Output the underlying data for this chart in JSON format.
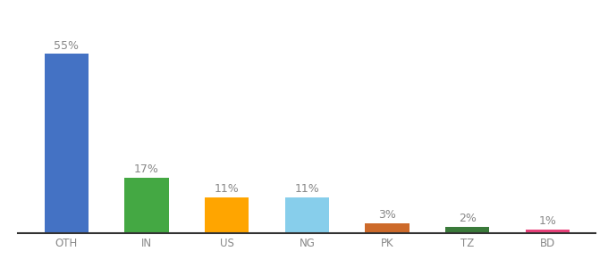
{
  "categories": [
    "OTH",
    "IN",
    "US",
    "NG",
    "PK",
    "TZ",
    "BD"
  ],
  "values": [
    55,
    17,
    11,
    11,
    3,
    2,
    1
  ],
  "bar_colors": [
    "#4472C4",
    "#44A843",
    "#FFA500",
    "#87CEEB",
    "#CD6A2A",
    "#3A7A3A",
    "#E8417A"
  ],
  "labels": [
    "55%",
    "17%",
    "11%",
    "11%",
    "3%",
    "2%",
    "1%"
  ],
  "ylim": [
    0,
    65
  ],
  "background_color": "#ffffff",
  "label_color": "#888888",
  "label_fontsize": 9,
  "tick_fontsize": 8.5,
  "tick_color": "#888888",
  "bar_width": 0.55,
  "bottom_spine_color": "#333333"
}
